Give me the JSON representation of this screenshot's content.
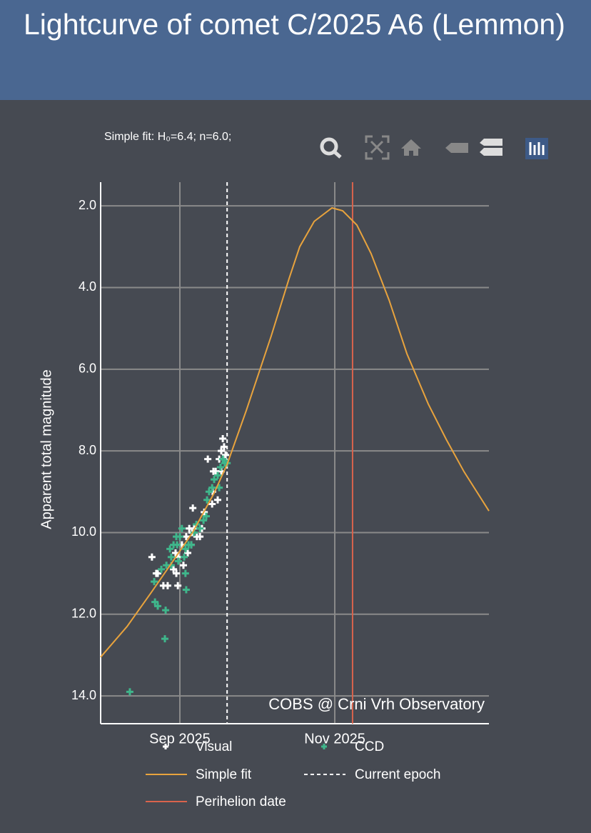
{
  "chart_data": {
    "type": "scatter",
    "title": "Lightcurve of comet C/2025 A6 (Lemmon)",
    "subtitle": "Simple fit: H₀=6.4; n=6.0;",
    "annotation": "COBS @ Crni Vrh Observatory",
    "ylabel": "Apparent total magnitude",
    "xlim": [
      -31.2,
      121.7
    ],
    "xticks": [
      {
        "value": 0,
        "label": "Sep 2025"
      },
      {
        "value": 61,
        "label": "Nov 2025"
      }
    ],
    "ylim": [
      1.42,
      14.68
    ],
    "y_reversed": true,
    "yticks": [
      {
        "value": 2,
        "label": "2.0"
      },
      {
        "value": 4,
        "label": "4.0"
      },
      {
        "value": 6,
        "label": "6.0"
      },
      {
        "value": 8,
        "label": "8.0"
      },
      {
        "value": 10,
        "label": "10.0"
      },
      {
        "value": 12,
        "label": "12.0"
      },
      {
        "value": 14,
        "label": "14.0"
      }
    ],
    "grid": true,
    "series": [
      {
        "name": "Visual",
        "color": "#ffffff",
        "mode": "markers",
        "x": [
          -11.0,
          -8.7,
          -9.3,
          -6.5,
          -4.8,
          -1.4,
          -1.7,
          -0.6,
          0.8,
          1.4,
          2.5,
          3.7,
          4.5,
          5.6,
          6.7,
          7.9,
          8.7,
          5.1,
          4.8,
          11.0,
          13.2,
          14.1,
          15.5,
          16.3,
          16.9,
          17.4,
          18.0,
          17.1,
          14.9,
          12.7,
          -0.8,
          -2.5,
          3.1,
          9.6,
          12.9,
          16.3
        ],
        "values": [
          10.6,
          11.0,
          11.0,
          11.3,
          11.3,
          11.0,
          10.5,
          10.6,
          10.3,
          10.8,
          10.1,
          9.9,
          10.3,
          9.9,
          10.1,
          10.1,
          9.9,
          9.4,
          10.0,
          8.2,
          8.5,
          8.5,
          8.2,
          8.0,
          7.7,
          7.9,
          8.1,
          8.2,
          9.2,
          9.3,
          11.3,
          10.9,
          10.5,
          9.5,
          9.0,
          8.5
        ]
      },
      {
        "name": "CCD",
        "color": "#3fb68b",
        "mode": "markers",
        "x": [
          -19.7,
          -5.9,
          -9.8,
          -8.7,
          -5.6,
          -10.1,
          -7.3,
          -5.3,
          -3.4,
          -3.9,
          -2.5,
          -1.4,
          -0.6,
          1.7,
          2.2,
          0.0,
          3.4,
          4.5,
          2.5,
          5.6,
          6.5,
          7.9,
          9.3,
          10.7,
          10.4,
          11.5,
          12.7,
          13.5,
          14.9,
          15.5,
          16.0,
          16.9,
          17.7,
          18.6,
          2.2,
          -3.4,
          -1.1,
          0.8
        ],
        "values": [
          13.9,
          12.6,
          11.7,
          11.8,
          11.9,
          11.2,
          10.9,
          10.8,
          10.6,
          10.4,
          10.3,
          10.1,
          10.7,
          10.6,
          11.0,
          10.1,
          10.3,
          10.3,
          11.4,
          10.0,
          9.8,
          9.9,
          9.7,
          9.2,
          9.6,
          9.0,
          8.9,
          8.7,
          8.6,
          8.9,
          8.4,
          8.2,
          8.3,
          8.3,
          10.4,
          10.8,
          10.3,
          9.9
        ]
      },
      {
        "name": "Simple fit",
        "color": "#e8a33d",
        "mode": "line",
        "x": [
          -31.2,
          -20.8,
          -11.2,
          -3.4,
          5.1,
          13.5,
          18.6,
          26.1,
          36.0,
          43.0,
          47.2,
          52.9,
          59.9,
          64.1,
          69.7,
          75.3,
          82.4,
          89.4,
          97.8,
          104.9,
          111.9,
          121.7
        ],
        "values": [
          13.05,
          12.3,
          11.46,
          10.76,
          9.99,
          9.03,
          8.33,
          7.02,
          5.18,
          3.78,
          3.0,
          2.38,
          2.05,
          2.12,
          2.47,
          3.17,
          4.31,
          5.62,
          6.85,
          7.72,
          8.51,
          9.47
        ]
      }
    ],
    "vlines": [
      {
        "name": "Current epoch",
        "x": 18.6,
        "color": "#ffffff",
        "dash": true
      },
      {
        "name": "Perihelion date",
        "x": 68,
        "color": "#d9634c",
        "dash": false
      }
    ]
  }
}
